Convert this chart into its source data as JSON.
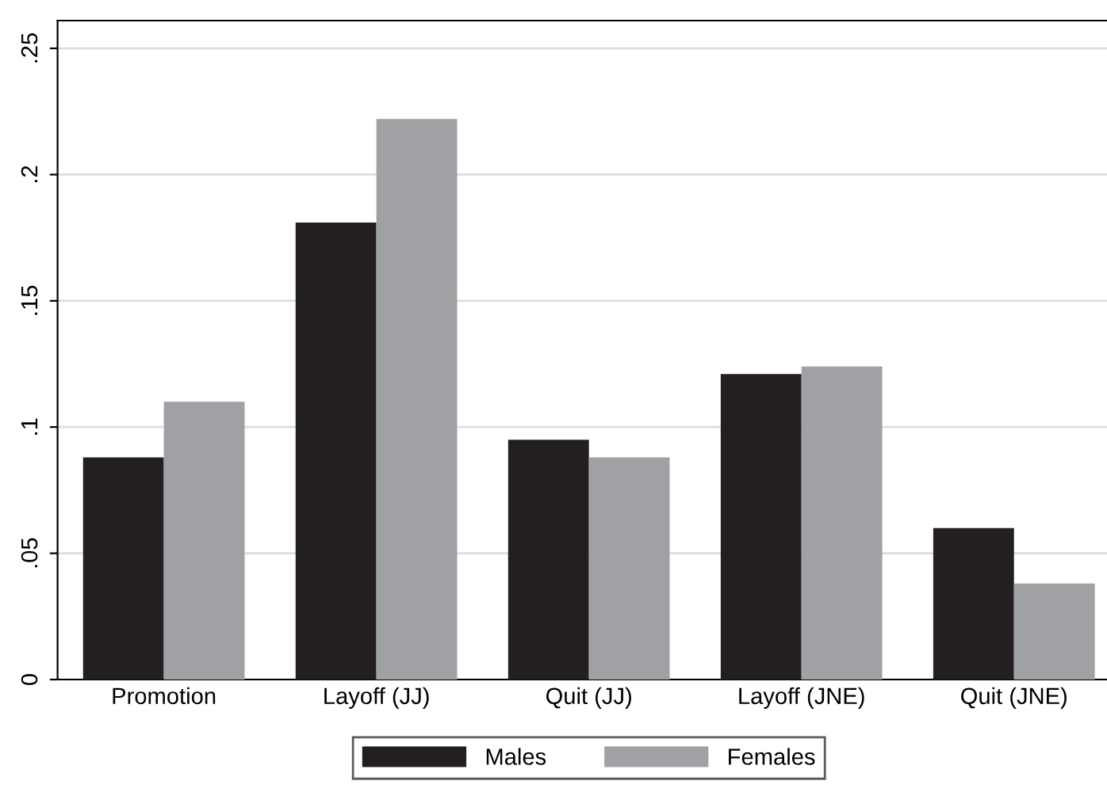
{
  "chart_data": {
    "type": "bar",
    "categories": [
      "Promotion",
      "Layoff (JJ)",
      "Quit (JJ)",
      "Layoff (JNE)",
      "Quit (JNE)"
    ],
    "series": [
      {
        "name": "Males",
        "color": "#231f20",
        "values": [
          0.088,
          0.181,
          0.095,
          0.121,
          0.06
        ]
      },
      {
        "name": "Females",
        "color": "#a0a1a4",
        "values": [
          0.11,
          0.222,
          0.088,
          0.124,
          0.038
        ]
      }
    ],
    "ylim": [
      0,
      0.261
    ],
    "yticks": [
      {
        "value": 0,
        "label": "0"
      },
      {
        "value": 0.05,
        "label": ".05"
      },
      {
        "value": 0.1,
        "label": ".1"
      },
      {
        "value": 0.15,
        "label": ".15"
      },
      {
        "value": 0.2,
        "label": ".2"
      },
      {
        "value": 0.25,
        "label": ".25"
      }
    ],
    "grid": "y",
    "legend": "bottom"
  }
}
